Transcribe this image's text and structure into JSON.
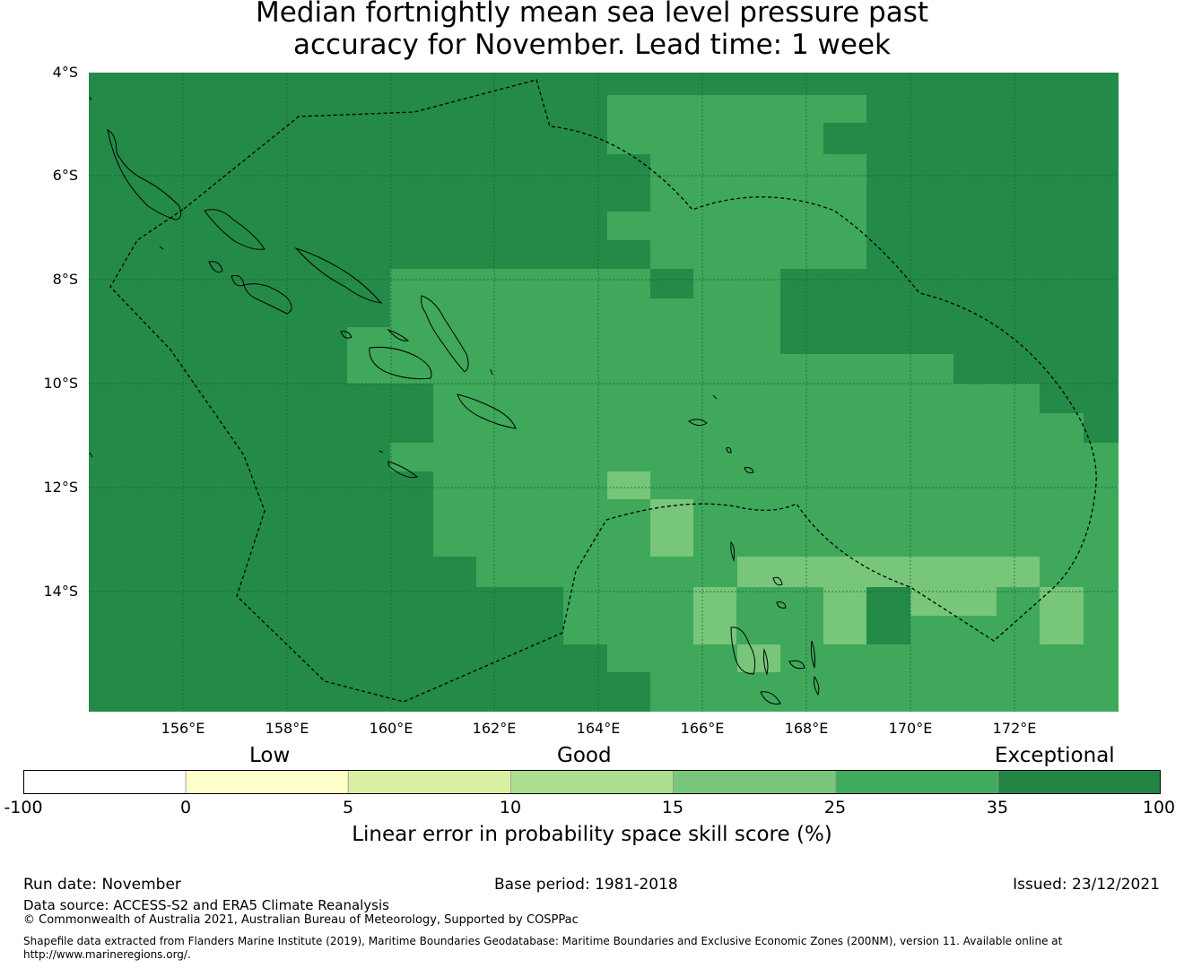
{
  "title": {
    "line1": "Median fortnightly mean sea level pressure past",
    "line2": "accuracy for November. Lead time: 1 week"
  },
  "map": {
    "lat_labels": [
      "4°S",
      "6°S",
      "8°S",
      "10°S",
      "12°S",
      "14°S"
    ],
    "lon_labels": [
      "156°E",
      "158°E",
      "160°E",
      "162°E",
      "164°E",
      "166°E",
      "168°E",
      "170°E",
      "172°E"
    ],
    "colors": {
      "exceptional": "#248a47",
      "good_high": "#3fa85b",
      "good_low": "#77c67a",
      "border": "#000000",
      "grid": "#1a5c2e"
    }
  },
  "legend": {
    "category_low": "Low",
    "category_good": "Good",
    "category_exceptional": "Exceptional",
    "ticks": [
      "-100",
      "0",
      "5",
      "10",
      "15",
      "25",
      "35",
      "100"
    ],
    "bin_colors": [
      "#ffffff",
      "#ffffcc",
      "#d9f0a3",
      "#addd8e",
      "#78c679",
      "#41ab5d",
      "#238443"
    ],
    "label": "Linear error in probability space skill score (%)"
  },
  "footer": {
    "run_date": "Run date: November",
    "base_period": "Base period: 1981-2018",
    "issued": "Issued: 23/12/2021",
    "data_source": "Data source: ACCESS-S2 and ERA5 Climate Reanalysis",
    "copyright": "© Commonwealth of Australia 2021, Australian Bureau of Meteorology, Supported by COSPPac",
    "shapefile_1": "Shapefile data extracted from Flanders Marine Institute (2019), Maritime Boundaries Geodatabase: Maritime Boundaries and Exclusive Economic Zones (200NM), version 11. Available online at",
    "shapefile_2": "http://www.marineregions.org/."
  }
}
